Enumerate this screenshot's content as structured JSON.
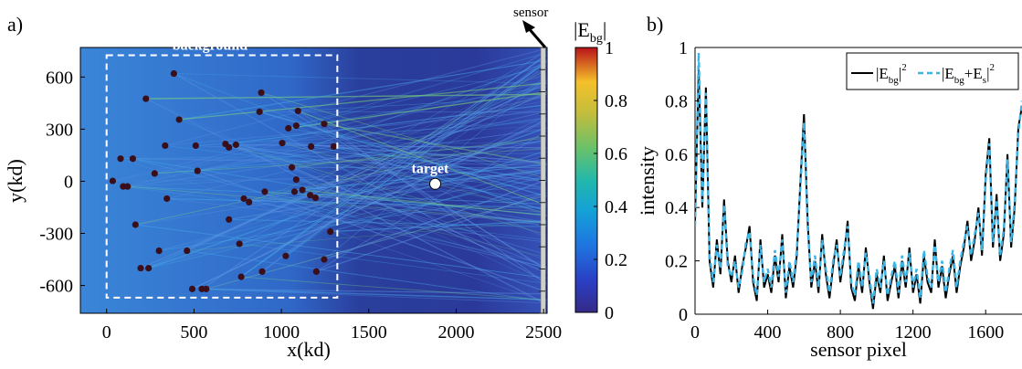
{
  "chart_data": [
    {
      "panel": "a)",
      "type": "heatmap",
      "xlabel": "x(kd)",
      "ylabel": "y(kd)",
      "xlim": [
        -150,
        2520
      ],
      "ylim": [
        -760,
        770
      ],
      "xticks": [
        0,
        500,
        1000,
        1500,
        2000,
        2500
      ],
      "xtick_labels": [
        "0",
        "500",
        "1000",
        "1500",
        "2000",
        "2500"
      ],
      "yticks": [
        600,
        300,
        0,
        -300,
        -600
      ],
      "ytick_labels": [
        "600",
        "300",
        "0",
        "-300",
        "-600"
      ],
      "colorbar": {
        "label_base": "|E",
        "label_sub": "bg",
        "label_end": "|",
        "range": [
          0,
          1
        ],
        "ticks": [
          1,
          0.8,
          0.6,
          0.4,
          0.2,
          0
        ],
        "tick_labels": [
          "1",
          "0.8",
          "0.6",
          "0.4",
          "0.2",
          "0"
        ]
      },
      "annotations": {
        "background": "background",
        "target": "target",
        "sensor": "sensor"
      },
      "background_box": {
        "x": [
          0,
          1320
        ],
        "y": [
          -670,
          725
        ]
      },
      "target_point": {
        "x": 1880,
        "y": -15
      },
      "sensor_x": 2495,
      "scatterers": [
        [
          35,
          2
        ],
        [
          80,
          130
        ],
        [
          95,
          -30
        ],
        [
          120,
          -30
        ],
        [
          150,
          130
        ],
        [
          225,
          475
        ],
        [
          240,
          -500
        ],
        [
          165,
          -250
        ],
        [
          195,
          -500
        ],
        [
          300,
          -400
        ],
        [
          275,
          45
        ],
        [
          335,
          205
        ],
        [
          345,
          -100
        ],
        [
          385,
          620
        ],
        [
          415,
          355
        ],
        [
          460,
          -400
        ],
        [
          510,
          205
        ],
        [
          520,
          60
        ],
        [
          490,
          -620
        ],
        [
          545,
          -620
        ],
        [
          570,
          -620
        ],
        [
          680,
          215
        ],
        [
          700,
          195
        ],
        [
          740,
          210
        ],
        [
          700,
          -220
        ],
        [
          760,
          -360
        ],
        [
          770,
          -550
        ],
        [
          785,
          -100
        ],
        [
          815,
          -120
        ],
        [
          875,
          400
        ],
        [
          885,
          510
        ],
        [
          890,
          -520
        ],
        [
          905,
          -60
        ],
        [
          1005,
          220
        ],
        [
          1040,
          305
        ],
        [
          1060,
          80
        ],
        [
          1085,
          320
        ],
        [
          1075,
          -60
        ],
        [
          1095,
          405
        ],
        [
          1120,
          -50
        ],
        [
          1170,
          200
        ],
        [
          1165,
          -80
        ],
        [
          1195,
          -95
        ],
        [
          1245,
          -450
        ],
        [
          1200,
          -520
        ],
        [
          1245,
          330
        ],
        [
          1280,
          -290
        ],
        [
          1300,
          200
        ],
        [
          1025,
          -430
        ],
        [
          1085,
          10
        ]
      ]
    },
    {
      "panel": "b)",
      "type": "line",
      "xlabel": "sensor pixel",
      "ylabel": "intensity",
      "xlim": [
        0,
        1800
      ],
      "ylim": [
        0,
        1
      ],
      "xticks": [
        0,
        400,
        800,
        1200,
        1600
      ],
      "xtick_labels": [
        "0",
        "400",
        "800",
        "1200",
        "1600"
      ],
      "yticks": [
        0,
        0.2,
        0.4,
        0.6,
        0.8,
        1
      ],
      "ytick_labels": [
        "0",
        "0.2",
        "0.4",
        "0.6",
        "0.8",
        "1"
      ],
      "x": [
        0,
        20,
        40,
        60,
        80,
        100,
        120,
        140,
        160,
        180,
        200,
        220,
        240,
        260,
        280,
        300,
        320,
        340,
        360,
        380,
        400,
        420,
        440,
        460,
        480,
        500,
        520,
        540,
        560,
        580,
        600,
        620,
        640,
        660,
        680,
        700,
        720,
        740,
        760,
        780,
        800,
        820,
        840,
        860,
        880,
        900,
        920,
        940,
        960,
        980,
        1000,
        1020,
        1040,
        1060,
        1080,
        1100,
        1120,
        1140,
        1160,
        1180,
        1200,
        1220,
        1240,
        1260,
        1280,
        1300,
        1320,
        1340,
        1360,
        1380,
        1400,
        1420,
        1440,
        1460,
        1480,
        1500,
        1520,
        1540,
        1560,
        1580,
        1600,
        1620,
        1640,
        1660,
        1680,
        1700,
        1720,
        1740,
        1760,
        1780,
        1800
      ],
      "series": [
        {
          "name_base": "|E",
          "name_sub": "bg",
          "name_end": "|",
          "name_sup": "2",
          "color": "#000000",
          "values": [
            0.35,
            0.92,
            0.4,
            0.85,
            0.2,
            0.1,
            0.28,
            0.15,
            0.43,
            0.2,
            0.12,
            0.22,
            0.08,
            0.18,
            0.25,
            0.33,
            0.12,
            0.05,
            0.28,
            0.1,
            0.15,
            0.08,
            0.22,
            0.12,
            0.3,
            0.06,
            0.18,
            0.1,
            0.22,
            0.5,
            0.75,
            0.35,
            0.1,
            0.2,
            0.08,
            0.3,
            0.15,
            0.06,
            0.18,
            0.28,
            0.12,
            0.22,
            0.35,
            0.1,
            0.05,
            0.18,
            0.08,
            0.25,
            0.12,
            0.02,
            0.15,
            0.08,
            0.22,
            0.05,
            0.12,
            0.18,
            0.06,
            0.2,
            0.1,
            0.25,
            0.08,
            0.15,
            0.04,
            0.22,
            0.12,
            0.08,
            0.28,
            0.1,
            0.18,
            0.06,
            0.15,
            0.22,
            0.08,
            0.18,
            0.25,
            0.35,
            0.2,
            0.28,
            0.4,
            0.22,
            0.52,
            0.66,
            0.25,
            0.45,
            0.2,
            0.3,
            0.6,
            0.25,
            0.4,
            0.7,
            0.78
          ]
        },
        {
          "name_base": "|E",
          "name_sub": "bg",
          "name_mid": "+E",
          "name_sub2": "s",
          "name_end": "|",
          "name_sup": "2",
          "color": "#3cb4e6",
          "values": [
            0.33,
            0.98,
            0.42,
            0.83,
            0.22,
            0.12,
            0.26,
            0.17,
            0.41,
            0.18,
            0.14,
            0.2,
            0.1,
            0.16,
            0.27,
            0.31,
            0.14,
            0.07,
            0.26,
            0.12,
            0.17,
            0.1,
            0.24,
            0.14,
            0.28,
            0.08,
            0.2,
            0.12,
            0.24,
            0.48,
            0.72,
            0.33,
            0.12,
            0.22,
            0.1,
            0.28,
            0.17,
            0.08,
            0.2,
            0.26,
            0.14,
            0.24,
            0.33,
            0.12,
            0.07,
            0.2,
            0.1,
            0.23,
            0.14,
            0.04,
            0.17,
            0.1,
            0.2,
            0.07,
            0.14,
            0.2,
            0.08,
            0.22,
            0.12,
            0.23,
            0.1,
            0.17,
            0.06,
            0.24,
            0.14,
            0.1,
            0.26,
            0.12,
            0.2,
            0.08,
            0.17,
            0.24,
            0.1,
            0.2,
            0.27,
            0.33,
            0.22,
            0.3,
            0.38,
            0.24,
            0.5,
            0.64,
            0.27,
            0.43,
            0.22,
            0.32,
            0.58,
            0.27,
            0.42,
            0.68,
            0.8
          ]
        }
      ],
      "legend_position": "top-right"
    }
  ]
}
